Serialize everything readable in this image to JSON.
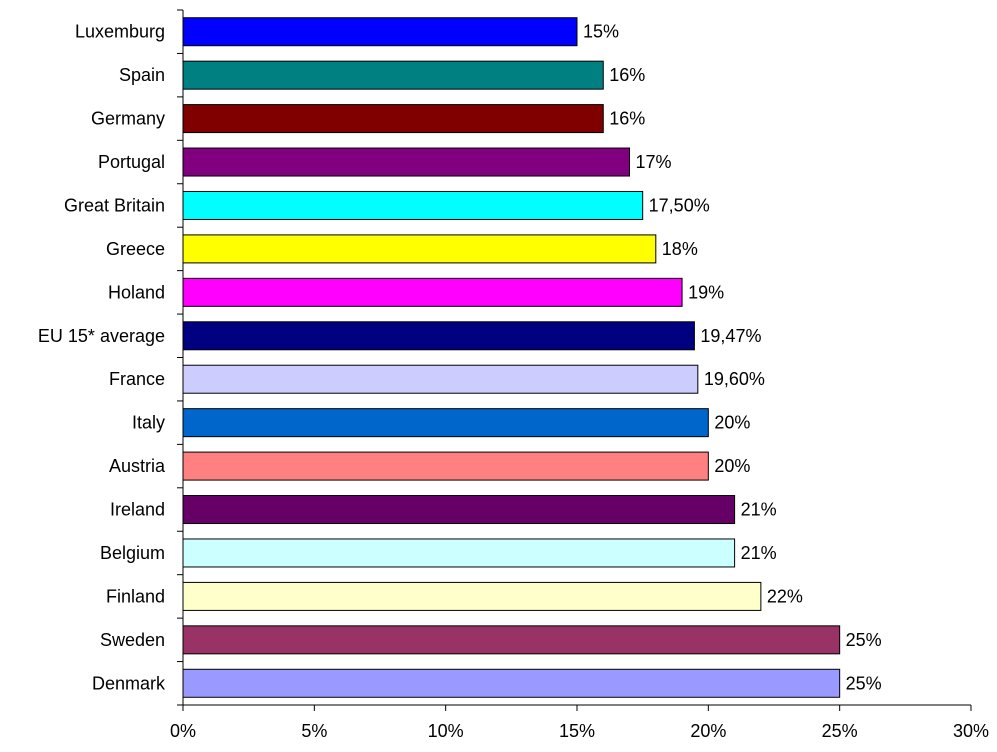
{
  "chart_data": {
    "type": "bar",
    "orientation": "horizontal",
    "categories": [
      "Luxemburg",
      "Spain",
      "Germany",
      "Portugal",
      "Great Britain",
      "Greece",
      "Holand",
      "EU 15* average",
      "France",
      "Italy",
      "Austria",
      "Ireland",
      "Belgium",
      "Finland",
      "Sweden",
      "Denmark"
    ],
    "values": [
      15,
      16,
      16,
      17,
      17.5,
      18,
      19,
      19.47,
      19.6,
      20,
      20,
      21,
      21,
      22,
      25,
      25
    ],
    "value_labels": [
      "15%",
      "16%",
      "16%",
      "17%",
      "17,50%",
      "18%",
      "19%",
      "19,47%",
      "19,60%",
      "20%",
      "20%",
      "21%",
      "21%",
      "22%",
      "25%",
      "25%"
    ],
    "colors": [
      "#0000FF",
      "#008080",
      "#800000",
      "#800080",
      "#00FFFF",
      "#FFFF00",
      "#FF00FF",
      "#000080",
      "#CCCCFF",
      "#0066CC",
      "#FF8080",
      "#660066",
      "#CCFFFF",
      "#FFFFCC",
      "#993366",
      "#9999FF"
    ],
    "x_ticks": [
      "0%",
      "5%",
      "10%",
      "15%",
      "20%",
      "25%",
      "30%"
    ],
    "xlim": [
      0,
      30
    ],
    "grid": false,
    "legend": "none"
  }
}
